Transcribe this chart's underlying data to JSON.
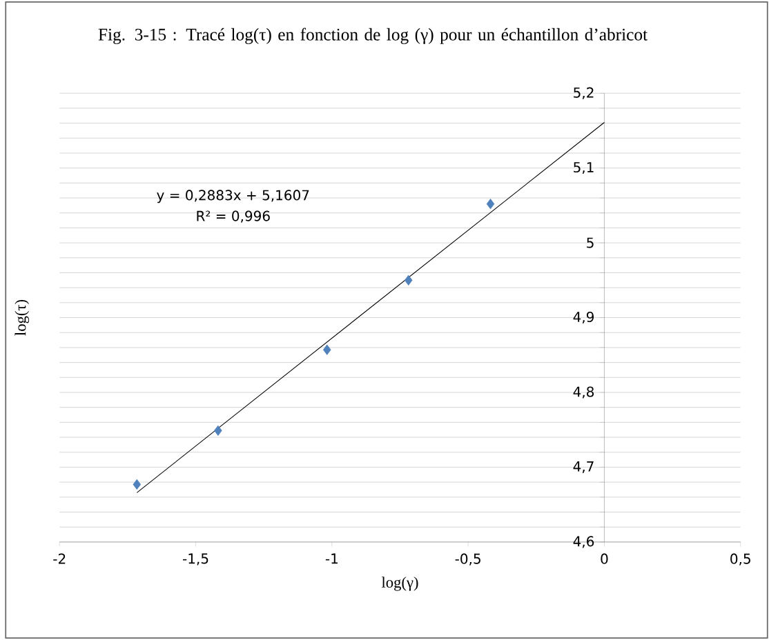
{
  "chart_data": {
    "type": "scatter",
    "title": "Fig. 3-15 : Tracé log(τ) en fonction de log (γ)  pour un échantillon d’abricot",
    "xlabel": "log(γ)",
    "ylabel": "log(τ)",
    "series": [
      {
        "color": "#4f81bd",
        "marker": "diamond",
        "x": [
          -1.716,
          -1.418,
          -1.018,
          -0.719,
          -0.418
        ],
        "values": [
          4.677,
          4.749,
          4.857,
          4.95,
          5.052
        ]
      },
      {
        "type": "line",
        "color": "#000000",
        "marker": "none",
        "line_style": "solid",
        "x": [
          -1.716,
          0
        ],
        "values": [
          4.666,
          5.161
        ]
      }
    ],
    "annotations": [
      "y = 0,2883x + 5,1607",
      "R² = 0,996"
    ],
    "xlim": [
      -2,
      0.5
    ],
    "ylim": [
      4.6,
      5.2
    ],
    "xticks": [
      {
        "value": -2,
        "label": "-2"
      },
      {
        "value": -1.5,
        "label": "-1,5"
      },
      {
        "value": -1,
        "label": "-1"
      },
      {
        "value": -0.5,
        "label": "-0,5"
      },
      {
        "value": 0,
        "label": "0"
      },
      {
        "value": 0.5,
        "label": "0,5"
      }
    ],
    "yticks": [
      {
        "value": 4.6,
        "label": "4,6"
      },
      {
        "value": 4.62,
        "label": null
      },
      {
        "value": 4.64,
        "label": null
      },
      {
        "value": 4.66,
        "label": null
      },
      {
        "value": 4.68,
        "label": null
      },
      {
        "value": 4.7,
        "label": "4,7"
      },
      {
        "value": 4.72,
        "label": null
      },
      {
        "value": 4.74,
        "label": null
      },
      {
        "value": 4.76,
        "label": null
      },
      {
        "value": 4.78,
        "label": null
      },
      {
        "value": 4.8,
        "label": "4,8"
      },
      {
        "value": 4.82,
        "label": null
      },
      {
        "value": 4.84,
        "label": null
      },
      {
        "value": 4.86,
        "label": null
      },
      {
        "value": 4.88,
        "label": null
      },
      {
        "value": 4.9,
        "label": "4,9"
      },
      {
        "value": 4.92,
        "label": null
      },
      {
        "value": 4.94,
        "label": null
      },
      {
        "value": 4.96,
        "label": null
      },
      {
        "value": 4.98,
        "label": null
      },
      {
        "value": 5,
        "label": "5"
      },
      {
        "value": 5.02,
        "label": null
      },
      {
        "value": 5.04,
        "label": null
      },
      {
        "value": 5.06,
        "label": null
      },
      {
        "value": 5.08,
        "label": null
      },
      {
        "value": 5.1,
        "label": "5,1"
      },
      {
        "value": 5.12,
        "label": null
      },
      {
        "value": 5.14,
        "label": null
      },
      {
        "value": 5.16,
        "label": null
      },
      {
        "value": 5.18,
        "label": null
      },
      {
        "value": 5.2,
        "label": "5,2"
      }
    ],
    "grid": "y"
  }
}
